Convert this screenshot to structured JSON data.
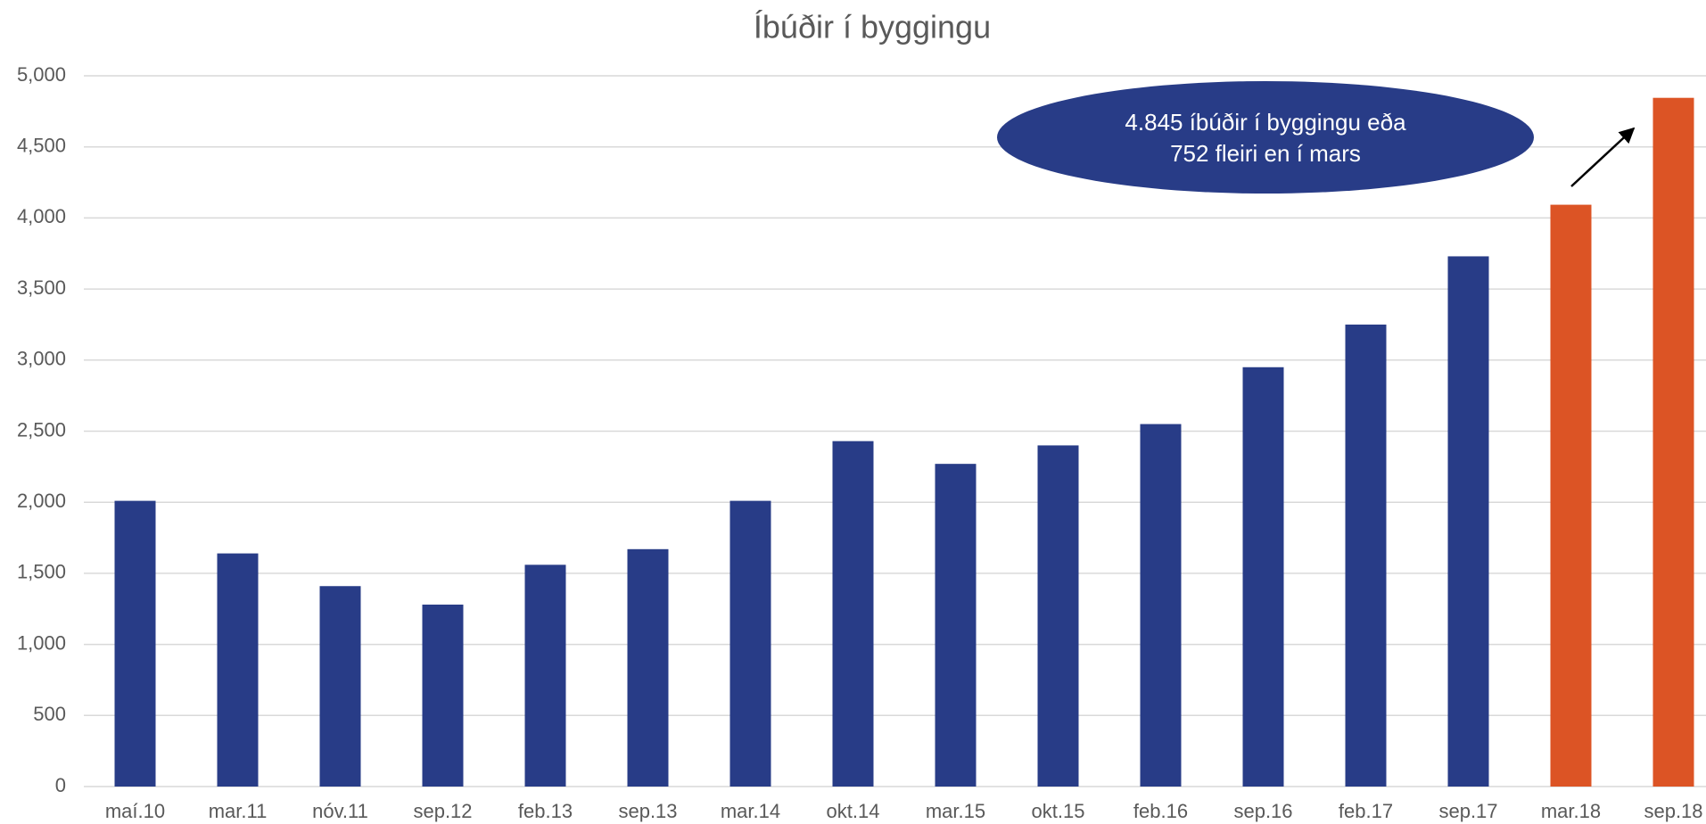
{
  "chart_data": {
    "type": "bar",
    "title": "Íbúðir í byggingu",
    "categories": [
      "maí.10",
      "mar.11",
      "nóv.11",
      "sep.12",
      "feb.13",
      "sep.13",
      "mar.14",
      "okt.14",
      "mar.15",
      "okt.15",
      "feb.16",
      "sep.16",
      "feb.17",
      "sep.17",
      "mar.18",
      "sep.18"
    ],
    "values": [
      2010,
      1640,
      1410,
      1280,
      1560,
      1670,
      2010,
      2430,
      2270,
      2400,
      2550,
      2950,
      3250,
      3730,
      4093,
      4845
    ],
    "colors": [
      "#283c87",
      "#283c87",
      "#283c87",
      "#283c87",
      "#283c87",
      "#283c87",
      "#283c87",
      "#283c87",
      "#283c87",
      "#283c87",
      "#283c87",
      "#283c87",
      "#283c87",
      "#283c87",
      "#dc5425",
      "#dc5425"
    ],
    "ylim": [
      0,
      5000
    ],
    "yticks": [
      0,
      {
        "value": 500,
        "label": "500"
      },
      {
        "value": 1000,
        "label": "1,000"
      },
      {
        "value": 1500,
        "label": "1,500"
      },
      {
        "value": 2000,
        "label": "2,000"
      },
      {
        "value": 2500,
        "label": "2,500"
      },
      {
        "value": 3000,
        "label": "3,000"
      },
      {
        "value": 3500,
        "label": "3,500"
      },
      {
        "value": 4000,
        "label": "4,000"
      },
      {
        "value": 4500,
        "label": "4,500"
      },
      {
        "value": 5000,
        "label": "5,000"
      }
    ],
    "grid": true,
    "annotation": {
      "lines": [
        "4.845 íbúðir í byggingu eða",
        "752 fleiri en í mars"
      ],
      "color": "#283c87"
    }
  }
}
